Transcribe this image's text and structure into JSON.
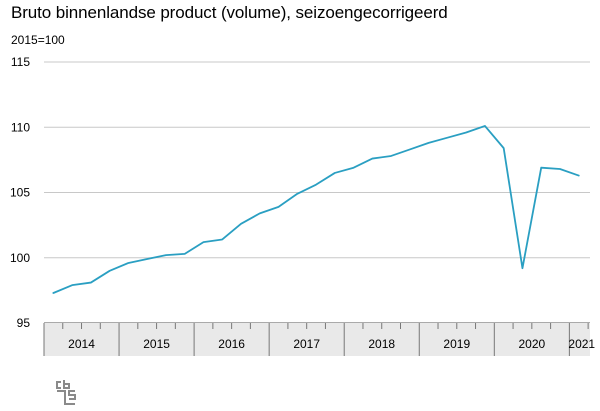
{
  "chart_data": {
    "type": "line",
    "title": "Bruto binnenlandse product (volume), seizoengecorrigeerd",
    "unit_label": "2015=100",
    "xlabel": "",
    "ylabel": "",
    "ylim": [
      95,
      115
    ],
    "yticks": [
      95,
      100,
      105,
      110,
      115
    ],
    "grid": "horizontal",
    "colors": {
      "line": "#2a9fc2",
      "grid": "#c8c8c8",
      "axis_band": "#e9e9e9",
      "logo": "#8a8a8a"
    },
    "year_labels": [
      "2014",
      "2015",
      "2016",
      "2017",
      "2018",
      "2019",
      "2020",
      "2021"
    ],
    "x": [
      "2014-Q1",
      "2014-Q2",
      "2014-Q3",
      "2014-Q4",
      "2015-Q1",
      "2015-Q2",
      "2015-Q3",
      "2015-Q4",
      "2016-Q1",
      "2016-Q2",
      "2016-Q3",
      "2016-Q4",
      "2017-Q1",
      "2017-Q2",
      "2017-Q3",
      "2017-Q4",
      "2018-Q1",
      "2018-Q2",
      "2018-Q3",
      "2018-Q4",
      "2019-Q1",
      "2019-Q2",
      "2019-Q3",
      "2019-Q4",
      "2020-Q1",
      "2020-Q2",
      "2020-Q3",
      "2020-Q4",
      "2021-Q1"
    ],
    "series": [
      {
        "values": [
          97.3,
          97.9,
          98.1,
          99.0,
          99.6,
          99.9,
          100.2,
          100.3,
          101.2,
          101.4,
          102.6,
          103.4,
          103.9,
          104.9,
          105.6,
          106.5,
          106.9,
          107.6,
          107.8,
          108.3,
          108.8,
          109.2,
          109.6,
          110.1,
          108.4,
          99.2,
          106.9,
          106.8,
          106.3
        ]
      }
    ]
  },
  "logo": {
    "name": "cbs-logo"
  }
}
